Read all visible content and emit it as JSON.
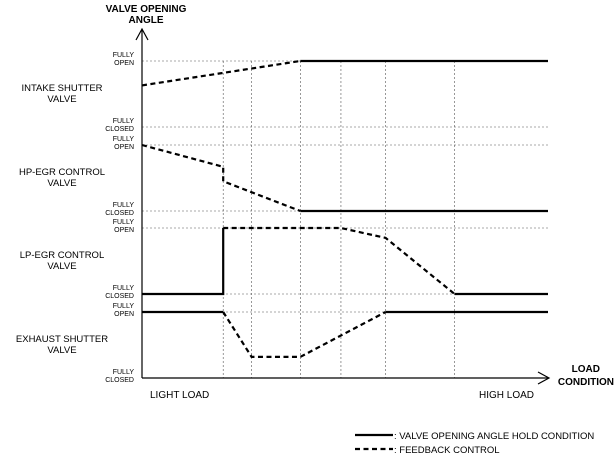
{
  "chart_data": {
    "type": "line",
    "title": "",
    "ylabel": "VALVE OPENING ANGLE",
    "xlabel": "LOAD CONDITION",
    "x_tick_labels": {
      "left": "LIGHT LOAD",
      "right": "HIGH LOAD"
    },
    "level_labels": {
      "open": "FULLY OPEN",
      "closed": "FULLY CLOSED"
    },
    "x_breakpoints": [
      0,
      0.2,
      0.27,
      0.39,
      0.49,
      0.6,
      0.77,
      1.0
    ],
    "panels": [
      {
        "name": "INTAKE SHUTTER VALVE",
        "segments": [
          {
            "style": "feedback",
            "points": [
              [
                0,
                0.63
              ],
              [
                0.39,
                1.0
              ]
            ]
          },
          {
            "style": "hold",
            "points": [
              [
                0.39,
                1.0
              ],
              [
                1.0,
                1.0
              ]
            ]
          }
        ]
      },
      {
        "name": "HP-EGR CONTROL VALVE",
        "segments": [
          {
            "style": "feedback",
            "points": [
              [
                0,
                1.0
              ],
              [
                0.2,
                0.67
              ],
              [
                0.2,
                0.45
              ],
              [
                0.39,
                0.0
              ]
            ]
          },
          {
            "style": "hold",
            "points": [
              [
                0.39,
                0.0
              ],
              [
                1.0,
                0.0
              ]
            ]
          }
        ]
      },
      {
        "name": "LP-EGR CONTROL VALVE",
        "segments": [
          {
            "style": "hold",
            "points": [
              [
                0,
                0.0
              ],
              [
                0.2,
                0.0
              ],
              [
                0.2,
                1.0
              ]
            ]
          },
          {
            "style": "feedback",
            "points": [
              [
                0.2,
                1.0
              ],
              [
                0.49,
                1.0
              ],
              [
                0.6,
                0.85
              ],
              [
                0.77,
                0.0
              ]
            ]
          },
          {
            "style": "hold",
            "points": [
              [
                0.77,
                0.0
              ],
              [
                1.0,
                0.0
              ]
            ]
          }
        ]
      },
      {
        "name": "EXHAUST SHUTTER VALVE",
        "segments": [
          {
            "style": "hold",
            "points": [
              [
                0,
                1.0
              ],
              [
                0.2,
                1.0
              ]
            ]
          },
          {
            "style": "feedback",
            "points": [
              [
                0.2,
                1.0
              ],
              [
                0.27,
                0.32
              ],
              [
                0.39,
                0.32
              ],
              [
                0.6,
                1.0
              ]
            ]
          },
          {
            "style": "hold",
            "points": [
              [
                0.6,
                1.0
              ],
              [
                1.0,
                1.0
              ]
            ]
          }
        ]
      }
    ],
    "legend": [
      {
        "style": "hold",
        "label": ": VALVE OPENING ANGLE HOLD CONDITION"
      },
      {
        "style": "feedback",
        "label": ": FEEDBACK CONTROL"
      }
    ],
    "grid": true,
    "legend_placement": "bottom-right"
  }
}
